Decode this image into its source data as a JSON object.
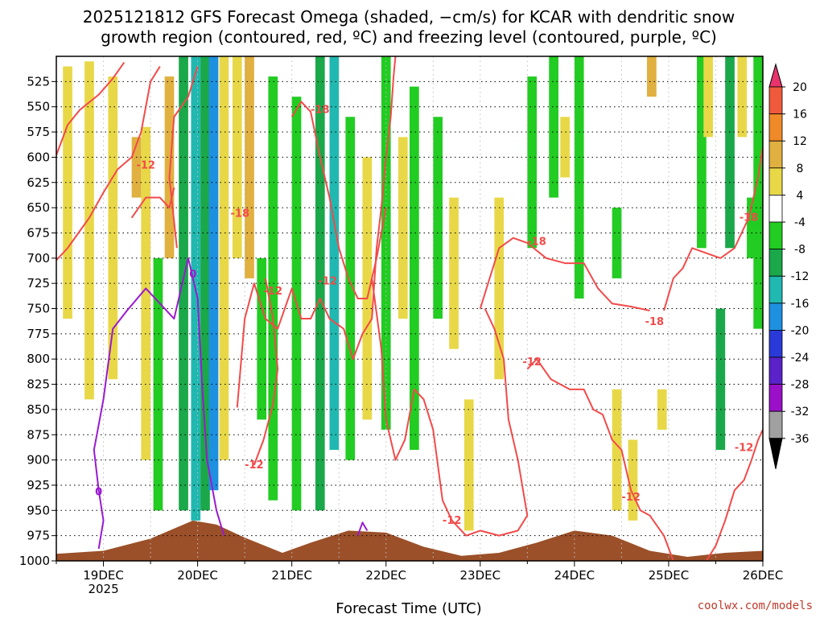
{
  "chart_data": {
    "type": "heatmap",
    "title_line1": "2025121812 GFS Forecast Omega (shaded, −cm/s) for KCAR with dendritic snow",
    "title_line2": "growth region (contoured, red, ºC) and freezing level (contoured, purple, ºC)",
    "xlabel": "Forecast Time (UTC)",
    "credit": "coolwx.com/models",
    "x_ticks": [
      {
        "label": "19DEC",
        "sublabel": "2025",
        "day": 19
      },
      {
        "label": "20DEC",
        "sublabel": "",
        "day": 20
      },
      {
        "label": "21DEC",
        "sublabel": "",
        "day": 21
      },
      {
        "label": "22DEC",
        "sublabel": "",
        "day": 22
      },
      {
        "label": "23DEC",
        "sublabel": "",
        "day": 23
      },
      {
        "label": "24DEC",
        "sublabel": "",
        "day": 24
      },
      {
        "label": "25DEC",
        "sublabel": "",
        "day": 25
      },
      {
        "label": "26DEC",
        "sublabel": "",
        "day": 26
      }
    ],
    "x_range_days": [
      18.5,
      26.0
    ],
    "y_ticks": [
      "525",
      "550",
      "575",
      "600",
      "625",
      "650",
      "675",
      "700",
      "725",
      "750",
      "775",
      "800",
      "825",
      "850",
      "875",
      "900",
      "925",
      "950",
      "975",
      "1000"
    ],
    "y_range_hpa": [
      500,
      1000
    ],
    "y_inverted": true,
    "grid": "dotted",
    "colorbar": {
      "labels": [
        "20",
        "16",
        "12",
        "8",
        "4",
        "-4",
        "-8",
        "-12",
        "-16",
        "-20",
        "-24",
        "-28",
        "-32",
        "-36"
      ],
      "colors": [
        "#e8336c",
        "#f05a3c",
        "#f08a28",
        "#e0b040",
        "#e8d848",
        "#ffffff",
        "#22cc22",
        "#1aa84a",
        "#20b8b0",
        "#1e90e0",
        "#2a3ad8",
        "#5a22c8",
        "#9a10c8",
        "#a0a0a0",
        "#000000"
      ]
    },
    "omega_bands": [
      {
        "day": 18.62,
        "p_top": 510,
        "p_bot": 760,
        "value": 5
      },
      {
        "day": 18.85,
        "p_top": 505,
        "p_bot": 840,
        "value": 6
      },
      {
        "day": 19.1,
        "p_top": 520,
        "p_bot": 820,
        "value": 5
      },
      {
        "day": 19.35,
        "p_top": 580,
        "p_bot": 640,
        "value": 9
      },
      {
        "day": 19.45,
        "p_top": 570,
        "p_bot": 900,
        "value": 6
      },
      {
        "day": 19.58,
        "p_top": 700,
        "p_bot": 950,
        "value": -7
      },
      {
        "day": 19.7,
        "p_top": 520,
        "p_bot": 700,
        "value": 9
      },
      {
        "day": 19.85,
        "p_top": 500,
        "p_bot": 950,
        "value": -8
      },
      {
        "day": 19.98,
        "p_top": 500,
        "p_bot": 960,
        "value": -15
      },
      {
        "day": 20.08,
        "p_top": 500,
        "p_bot": 950,
        "value": -10
      },
      {
        "day": 20.17,
        "p_top": 500,
        "p_bot": 930,
        "value": -17
      },
      {
        "day": 20.28,
        "p_top": 500,
        "p_bot": 900,
        "value": 6
      },
      {
        "day": 20.42,
        "p_top": 500,
        "p_bot": 700,
        "value": 5
      },
      {
        "day": 20.55,
        "p_top": 500,
        "p_bot": 720,
        "value": 9
      },
      {
        "day": 20.68,
        "p_top": 700,
        "p_bot": 860,
        "value": -7
      },
      {
        "day": 20.8,
        "p_top": 520,
        "p_bot": 940,
        "value": -7
      },
      {
        "day": 21.05,
        "p_top": 540,
        "p_bot": 950,
        "value": -7
      },
      {
        "day": 21.3,
        "p_top": 500,
        "p_bot": 950,
        "value": -10
      },
      {
        "day": 21.45,
        "p_top": 500,
        "p_bot": 890,
        "value": -15
      },
      {
        "day": 21.62,
        "p_top": 560,
        "p_bot": 900,
        "value": -7
      },
      {
        "day": 21.8,
        "p_top": 600,
        "p_bot": 860,
        "value": 5
      },
      {
        "day": 22.0,
        "p_top": 500,
        "p_bot": 870,
        "value": -7
      },
      {
        "day": 22.18,
        "p_top": 580,
        "p_bot": 760,
        "value": 5
      },
      {
        "day": 22.3,
        "p_top": 530,
        "p_bot": 890,
        "value": -7
      },
      {
        "day": 22.55,
        "p_top": 560,
        "p_bot": 760,
        "value": -7
      },
      {
        "day": 22.72,
        "p_top": 640,
        "p_bot": 790,
        "value": 5
      },
      {
        "day": 22.88,
        "p_top": 840,
        "p_bot": 970,
        "value": 6
      },
      {
        "day": 23.2,
        "p_top": 640,
        "p_bot": 820,
        "value": 5
      },
      {
        "day": 23.55,
        "p_top": 520,
        "p_bot": 690,
        "value": -7
      },
      {
        "day": 23.78,
        "p_top": 500,
        "p_bot": 640,
        "value": -7
      },
      {
        "day": 23.9,
        "p_top": 560,
        "p_bot": 620,
        "value": 5
      },
      {
        "day": 24.05,
        "p_top": 500,
        "p_bot": 740,
        "value": -7
      },
      {
        "day": 24.45,
        "p_top": 830,
        "p_bot": 950,
        "value": 5
      },
      {
        "day": 24.45,
        "p_top": 650,
        "p_bot": 720,
        "value": -7
      },
      {
        "day": 24.62,
        "p_top": 880,
        "p_bot": 960,
        "value": 5
      },
      {
        "day": 24.82,
        "p_top": 500,
        "p_bot": 540,
        "value": 9
      },
      {
        "day": 24.93,
        "p_top": 830,
        "p_bot": 870,
        "value": 5
      },
      {
        "day": 25.35,
        "p_top": 500,
        "p_bot": 690,
        "value": -7
      },
      {
        "day": 25.42,
        "p_top": 500,
        "p_bot": 580,
        "value": 6
      },
      {
        "day": 25.55,
        "p_top": 750,
        "p_bot": 890,
        "value": -8
      },
      {
        "day": 25.65,
        "p_top": 500,
        "p_bot": 690,
        "value": -11
      },
      {
        "day": 25.78,
        "p_top": 500,
        "p_bot": 580,
        "value": 6
      },
      {
        "day": 25.88,
        "p_top": 640,
        "p_bot": 700,
        "value": -7
      },
      {
        "day": 25.95,
        "p_top": 500,
        "p_bot": 770,
        "value": -7
      }
    ],
    "dgz_minus12": [
      [
        [
          18.5,
          598
        ],
        [
          18.62,
          568
        ],
        [
          18.75,
          553
        ],
        [
          18.95,
          538
        ],
        [
          19.1,
          522
        ],
        [
          19.22,
          506
        ]
      ],
      [
        [
          18.5,
          702
        ],
        [
          18.62,
          690
        ],
        [
          18.85,
          660
        ],
        [
          19.0,
          635
        ],
        [
          19.15,
          612
        ],
        [
          19.3,
          600
        ],
        [
          19.4,
          575
        ],
        [
          19.5,
          525
        ],
        [
          19.6,
          510
        ]
      ],
      [
        [
          19.78,
          690
        ],
        [
          19.7,
          620
        ],
        [
          19.75,
          560
        ],
        [
          19.9,
          540
        ],
        [
          20.0,
          510
        ]
      ],
      [
        [
          20.42,
          848
        ],
        [
          20.5,
          760
        ],
        [
          20.6,
          725
        ],
        [
          20.72,
          760
        ],
        [
          20.85,
          770
        ],
        [
          21.0,
          730
        ],
        [
          21.1,
          760
        ],
        [
          21.2,
          760
        ],
        [
          21.3,
          740
        ],
        [
          21.4,
          760
        ],
        [
          21.55,
          770
        ],
        [
          21.65,
          800
        ],
        [
          21.75,
          775
        ],
        [
          21.85,
          760
        ],
        [
          21.9,
          690
        ],
        [
          21.95,
          650
        ],
        [
          22.0,
          600
        ],
        [
          22.05,
          560
        ],
        [
          22.08,
          520
        ],
        [
          22.1,
          500
        ]
      ],
      [
        [
          20.6,
          905
        ],
        [
          20.7,
          880
        ],
        [
          20.8,
          845
        ],
        [
          20.85,
          810
        ],
        [
          20.8,
          760
        ],
        [
          20.72,
          720
        ]
      ],
      [
        [
          21.85,
          720
        ],
        [
          21.95,
          790
        ],
        [
          22.0,
          860
        ],
        [
          22.1,
          900
        ],
        [
          22.2,
          880
        ],
        [
          22.3,
          830
        ],
        [
          22.4,
          840
        ],
        [
          22.5,
          870
        ],
        [
          22.6,
          940
        ],
        [
          22.7,
          960
        ],
        [
          22.85,
          975
        ],
        [
          23.0,
          970
        ],
        [
          23.2,
          975
        ],
        [
          23.4,
          970
        ],
        [
          23.5,
          955
        ],
        [
          23.4,
          900
        ],
        [
          23.3,
          860
        ],
        [
          23.25,
          800
        ],
        [
          23.15,
          770
        ],
        [
          23.05,
          750
        ]
      ],
      [
        [
          23.5,
          810
        ],
        [
          23.6,
          800
        ],
        [
          23.75,
          820
        ],
        [
          23.95,
          830
        ],
        [
          24.1,
          830
        ],
        [
          24.2,
          850
        ],
        [
          24.3,
          855
        ],
        [
          24.4,
          880
        ],
        [
          24.5,
          890
        ],
        [
          24.6,
          930
        ],
        [
          24.7,
          950
        ],
        [
          24.8,
          955
        ],
        [
          24.95,
          975
        ],
        [
          25.05,
          1000
        ]
      ],
      [
        [
          25.4,
          1000
        ],
        [
          25.5,
          985
        ],
        [
          25.6,
          960
        ],
        [
          25.7,
          930
        ],
        [
          25.8,
          920
        ],
        [
          25.88,
          900
        ],
        [
          25.95,
          880
        ],
        [
          26.0,
          870
        ]
      ]
    ],
    "dgz_minus18": [
      [
        [
          19.3,
          660
        ],
        [
          19.45,
          640
        ],
        [
          19.6,
          640
        ],
        [
          19.7,
          650
        ],
        [
          19.75,
          630
        ]
      ],
      [
        [
          21.0,
          560
        ],
        [
          21.1,
          545
        ],
        [
          21.2,
          555
        ],
        [
          21.3,
          600
        ],
        [
          21.4,
          640
        ],
        [
          21.5,
          690
        ],
        [
          21.6,
          720
        ],
        [
          21.7,
          740
        ],
        [
          21.8,
          740
        ],
        [
          21.9,
          700
        ],
        [
          22.0,
          650
        ]
      ],
      [
        [
          23.0,
          750
        ],
        [
          23.1,
          720
        ],
        [
          23.2,
          690
        ],
        [
          23.35,
          680
        ],
        [
          23.5,
          685
        ],
        [
          23.7,
          700
        ],
        [
          23.9,
          705
        ],
        [
          24.1,
          705
        ],
        [
          24.25,
          730
        ],
        [
          24.4,
          745
        ],
        [
          24.6,
          748
        ],
        [
          24.8,
          752
        ]
      ],
      [
        [
          24.95,
          752
        ],
        [
          25.05,
          720
        ],
        [
          25.15,
          710
        ],
        [
          25.25,
          690
        ],
        [
          25.4,
          695
        ],
        [
          25.55,
          700
        ],
        [
          25.7,
          690
        ],
        [
          25.85,
          660
        ],
        [
          25.95,
          620
        ],
        [
          26.0,
          590
        ]
      ]
    ],
    "freezing_level": [
      [
        [
          18.95,
          988
        ],
        [
          19.0,
          960
        ],
        [
          18.95,
          930
        ],
        [
          18.9,
          890
        ],
        [
          19.0,
          840
        ],
        [
          19.1,
          770
        ],
        [
          19.25,
          752
        ],
        [
          19.45,
          730
        ],
        [
          19.6,
          745
        ],
        [
          19.75,
          760
        ],
        [
          19.9,
          700
        ],
        [
          20.0,
          740
        ],
        [
          20.05,
          830
        ],
        [
          20.1,
          900
        ],
        [
          20.2,
          950
        ],
        [
          20.28,
          975
        ]
      ],
      [
        [
          21.7,
          975
        ],
        [
          21.75,
          962
        ],
        [
          21.8,
          970
        ]
      ]
    ],
    "contour_labels": [
      {
        "text": "-12",
        "day": 19.45,
        "p": 608
      },
      {
        "text": "-18",
        "day": 20.45,
        "p": 656
      },
      {
        "text": "-12",
        "day": 20.8,
        "p": 733
      },
      {
        "text": "-18",
        "day": 21.3,
        "p": 553
      },
      {
        "text": "-12",
        "day": 21.38,
        "p": 723
      },
      {
        "text": "-12",
        "day": 20.6,
        "p": 905
      },
      {
        "text": "-18",
        "day": 23.6,
        "p": 684
      },
      {
        "text": "-12",
        "day": 23.55,
        "p": 803
      },
      {
        "text": "-18",
        "day": 24.85,
        "p": 763
      },
      {
        "text": "-12",
        "day": 22.7,
        "p": 960
      },
      {
        "text": "-12",
        "day": 24.6,
        "p": 937
      },
      {
        "text": "-18",
        "day": 25.85,
        "p": 660
      },
      {
        "text": "-12",
        "day": 25.8,
        "p": 888
      },
      {
        "text": "0",
        "day": 19.95,
        "p": 716
      },
      {
        "text": "0",
        "day": 18.95,
        "p": 932
      }
    ],
    "terrain": [
      [
        18.5,
        993
      ],
      [
        19.0,
        990
      ],
      [
        19.5,
        978
      ],
      [
        19.8,
        966
      ],
      [
        19.95,
        960
      ],
      [
        20.2,
        964
      ],
      [
        20.5,
        977
      ],
      [
        20.9,
        992
      ],
      [
        21.2,
        982
      ],
      [
        21.6,
        970
      ],
      [
        22.0,
        972
      ],
      [
        22.4,
        986
      ],
      [
        22.8,
        995
      ],
      [
        23.2,
        992
      ],
      [
        23.6,
        982
      ],
      [
        24.0,
        970
      ],
      [
        24.4,
        975
      ],
      [
        24.8,
        990
      ],
      [
        25.2,
        996
      ],
      [
        25.6,
        992
      ],
      [
        26.0,
        990
      ]
    ]
  }
}
